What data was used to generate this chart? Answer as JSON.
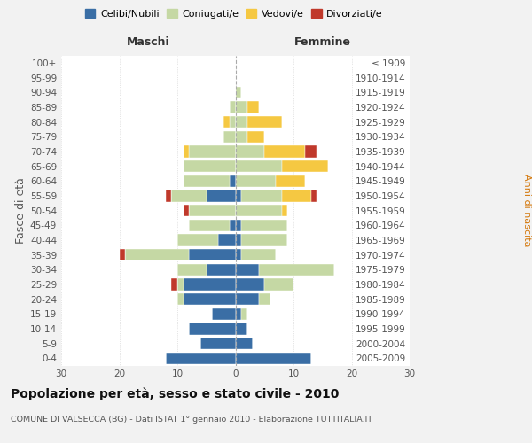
{
  "age_groups": [
    "0-4",
    "5-9",
    "10-14",
    "15-19",
    "20-24",
    "25-29",
    "30-34",
    "35-39",
    "40-44",
    "45-49",
    "50-54",
    "55-59",
    "60-64",
    "65-69",
    "70-74",
    "75-79",
    "80-84",
    "85-89",
    "90-94",
    "95-99",
    "100+"
  ],
  "birth_years": [
    "2005-2009",
    "2000-2004",
    "1995-1999",
    "1990-1994",
    "1985-1989",
    "1980-1984",
    "1975-1979",
    "1970-1974",
    "1965-1969",
    "1960-1964",
    "1955-1959",
    "1950-1954",
    "1945-1949",
    "1940-1944",
    "1935-1939",
    "1930-1934",
    "1925-1929",
    "1920-1924",
    "1915-1919",
    "1910-1914",
    "≤ 1909"
  ],
  "male": {
    "celibi": [
      12,
      6,
      8,
      4,
      9,
      9,
      5,
      8,
      3,
      1,
      0,
      5,
      1,
      0,
      0,
      0,
      0,
      0,
      0,
      0,
      0
    ],
    "coniugati": [
      0,
      0,
      0,
      0,
      1,
      1,
      5,
      11,
      7,
      7,
      8,
      6,
      8,
      9,
      8,
      2,
      1,
      1,
      0,
      0,
      0
    ],
    "vedovi": [
      0,
      0,
      0,
      0,
      0,
      0,
      0,
      0,
      0,
      0,
      0,
      0,
      0,
      0,
      1,
      0,
      1,
      0,
      0,
      0,
      0
    ],
    "divorziati": [
      0,
      0,
      0,
      0,
      0,
      1,
      0,
      1,
      0,
      0,
      1,
      1,
      0,
      0,
      0,
      0,
      0,
      0,
      0,
      0,
      0
    ]
  },
  "female": {
    "nubili": [
      13,
      3,
      2,
      1,
      4,
      5,
      4,
      1,
      1,
      1,
      0,
      1,
      0,
      0,
      0,
      0,
      0,
      0,
      0,
      0,
      0
    ],
    "coniugate": [
      0,
      0,
      0,
      1,
      2,
      5,
      13,
      6,
      8,
      8,
      8,
      7,
      7,
      8,
      5,
      2,
      2,
      2,
      1,
      0,
      0
    ],
    "vedove": [
      0,
      0,
      0,
      0,
      0,
      0,
      0,
      0,
      0,
      0,
      1,
      5,
      5,
      8,
      7,
      3,
      6,
      2,
      0,
      0,
      0
    ],
    "divorziate": [
      0,
      0,
      0,
      0,
      0,
      0,
      0,
      0,
      0,
      0,
      0,
      1,
      0,
      0,
      2,
      0,
      0,
      0,
      0,
      0,
      0
    ]
  },
  "colors": {
    "celibi_nubili": "#3a6ea5",
    "coniugati": "#c5d8a4",
    "vedovi": "#f5c842",
    "divorziati": "#c0392b"
  },
  "xlim": 30,
  "title": "Popolazione per età, sesso e stato civile - 2010",
  "subtitle": "COMUNE DI VALSECCA (BG) - Dati ISTAT 1° gennaio 2010 - Elaborazione TUTTITALIA.IT",
  "ylabel_left": "Fasce di età",
  "ylabel_right": "Anni di nascita",
  "xlabel_left": "Maschi",
  "xlabel_right": "Femmine",
  "bg_color": "#f2f2f2",
  "plot_bg_color": "#ffffff"
}
